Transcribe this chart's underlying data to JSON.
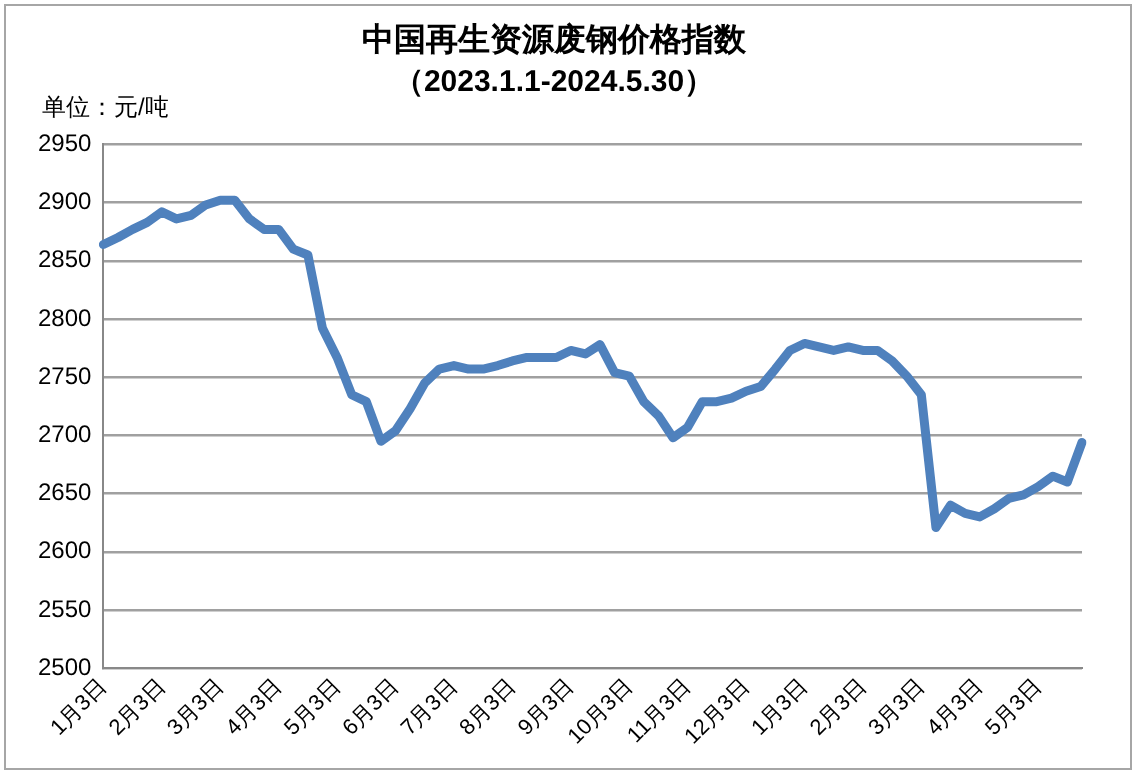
{
  "chart_data": {
    "type": "line",
    "title": "中国再生资源废钢价格指数",
    "subtitle": "（2023.1.1-2024.5.30）",
    "annotations": [
      "单位：元/吨"
    ],
    "categories": [
      "1月3日",
      null,
      null,
      null,
      "2月3日",
      null,
      null,
      null,
      "3月3日",
      null,
      null,
      null,
      "4月3日",
      null,
      null,
      null,
      "5月3日",
      null,
      null,
      null,
      "6月3日",
      null,
      null,
      null,
      "7月3日",
      null,
      null,
      null,
      "8月3日",
      null,
      null,
      null,
      "9月3日",
      null,
      null,
      null,
      "10月3日",
      null,
      null,
      null,
      "11月3日",
      null,
      null,
      null,
      "12月3日",
      null,
      null,
      null,
      "1月3日",
      null,
      null,
      null,
      "2月3日",
      null,
      null,
      null,
      "3月3日",
      null,
      null,
      null,
      "4月3日",
      null,
      null,
      null,
      "5月3日",
      null,
      null,
      null
    ],
    "series": [
      {
        "color": "#4f81bd",
        "values": [
          2864,
          2870,
          2877,
          2883,
          2892,
          2886,
          2889,
          2898,
          2902,
          2902,
          2886,
          2877,
          2877,
          2860,
          2855,
          2792,
          2767,
          2735,
          2729,
          2695,
          2704,
          2723,
          2745,
          2757,
          2760,
          2757,
          2757,
          2760,
          2764,
          2767,
          2767,
          2767,
          2773,
          2770,
          2778,
          2754,
          2751,
          2729,
          2717,
          2698,
          2707,
          2729,
          2729,
          2732,
          2738,
          2742,
          2757,
          2773,
          2779,
          2776,
          2773,
          2776,
          2773,
          2773,
          2764,
          2751,
          2735,
          2621,
          2640,
          2633,
          2630,
          2637,
          2646,
          2649,
          2656,
          2665,
          2660,
          2694
        ]
      }
    ],
    "ylim": [
      2500,
      2950
    ],
    "yticks": [
      2500,
      2550,
      2600,
      2650,
      2700,
      2750,
      2800,
      2850,
      2900,
      2950
    ],
    "grid": "y",
    "legend": false,
    "marker": "none",
    "line_style": "solid"
  }
}
